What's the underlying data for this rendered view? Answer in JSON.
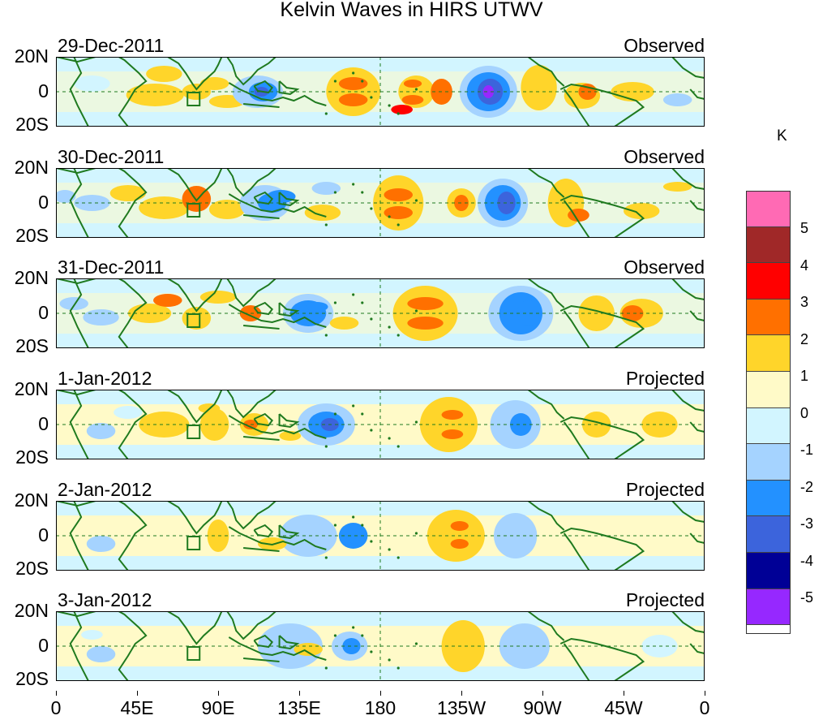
{
  "title": "Kelvin Waves in HIRS UTWV",
  "panels": [
    {
      "date": "29-Dec-2011",
      "status": "Observed"
    },
    {
      "date": "30-Dec-2011",
      "status": "Observed"
    },
    {
      "date": "31-Dec-2011",
      "status": "Observed"
    },
    {
      "date": "1-Jan-2012",
      "status": "Projected"
    },
    {
      "date": "2-Jan-2012",
      "status": "Projected"
    },
    {
      "date": "3-Jan-2012",
      "status": "Projected"
    }
  ],
  "lat_labels": [
    "20N",
    "0",
    "20S"
  ],
  "lon_labels": [
    "0",
    "45E",
    "90E",
    "135E",
    "180",
    "135W",
    "90W",
    "45W",
    "0"
  ],
  "colorbar": {
    "unit": "K",
    "levels": [
      "5",
      "4",
      "3",
      "2",
      "1",
      "0",
      "-1",
      "-2",
      "-3",
      "-4",
      "-5"
    ],
    "colors": [
      "#ff6ab4",
      "#a02828",
      "#ff0000",
      "#ff7000",
      "#ffd52a",
      "#fffac8",
      "#d2f5ff",
      "#a5d3ff",
      "#2391ff",
      "#3c64dc",
      "#000096",
      "#9628ff"
    ]
  },
  "colors": {
    "coast": "#1f7a1f",
    "region_box": "#1f7a1f"
  }
}
